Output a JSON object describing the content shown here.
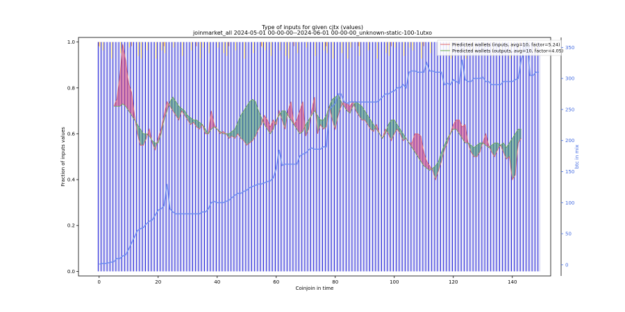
{
  "chart_data": {
    "type": "bar",
    "title": "Type of inputs for given cjtx (values)",
    "subtitle": "joinmarket_all 2024-05-01 00-00-00--2024-06-01 00-00-00_unknown-static-100-1utxo",
    "xlabel": "Coinjoin in time",
    "ylabel": "Fraction of inputs values",
    "ylabel_right": "btc in mix",
    "xlim": [
      -7,
      153
    ],
    "ylim": [
      -0.02,
      1.02
    ],
    "ylim_right": [
      -18,
      366
    ],
    "x_ticks": [
      0,
      20,
      40,
      60,
      80,
      100,
      120,
      140
    ],
    "y_ticks": [
      0.0,
      0.2,
      0.4,
      0.6,
      0.8,
      1.0
    ],
    "y_ticks_right": [
      0,
      50,
      100,
      150,
      200,
      250,
      300,
      350
    ],
    "n_coinjoins": 150,
    "bar_colors": {
      "main": "#1a1ad6",
      "secondary": "#c8c8ee",
      "highlight": "#ffe066",
      "orange": "#f4a460",
      "brown": "#8b4513"
    },
    "legend": {
      "position": "top-right",
      "entries": [
        {
          "label": "Predicted wallets (inputs, avg=10, factor=5.24)",
          "color": "#e06666"
        },
        {
          "label": "Predicted wallets (outputs, avg=10, factor=4.05)",
          "color": "#6aa84f"
        }
      ]
    },
    "series": [
      {
        "name": "Predicted wallets (inputs, avg=10, factor=5.24)",
        "color": "#e06666",
        "fill": "#d6336c",
        "x": [
          5,
          6,
          7,
          8,
          9,
          10,
          11,
          12,
          13,
          14,
          15,
          16,
          17,
          18,
          19,
          20,
          21,
          22,
          23,
          24,
          25,
          26,
          27,
          28,
          29,
          30,
          31,
          32,
          33,
          34,
          35,
          36,
          37,
          38,
          39,
          40,
          41,
          42,
          43,
          44,
          45,
          46,
          47,
          48,
          49,
          50,
          51,
          52,
          53,
          54,
          55,
          56,
          57,
          58,
          59,
          60,
          61,
          62,
          63,
          64,
          65,
          66,
          67,
          68,
          69,
          70,
          71,
          72,
          73,
          74,
          75,
          76,
          77,
          78,
          79,
          80,
          81,
          82,
          83,
          84,
          85,
          86,
          87,
          88,
          89,
          90,
          91,
          92,
          93,
          94,
          95,
          96,
          97,
          98,
          99,
          100,
          101,
          102,
          103,
          104,
          105,
          106,
          107,
          108,
          109,
          110,
          111,
          112,
          113,
          114,
          115,
          116,
          117,
          118,
          119,
          120,
          121,
          122,
          123,
          124,
          125,
          126,
          127,
          128,
          129,
          130,
          131,
          132,
          133,
          134,
          135,
          136,
          137,
          138,
          139,
          140,
          141,
          142,
          143
        ],
        "y": [
          0.72,
          0.75,
          0.85,
          0.99,
          0.92,
          0.82,
          0.78,
          0.68,
          0.6,
          0.55,
          0.55,
          0.58,
          0.62,
          0.56,
          0.53,
          0.58,
          0.62,
          0.68,
          0.74,
          0.72,
          0.7,
          0.68,
          0.66,
          0.7,
          0.68,
          0.66,
          0.64,
          0.65,
          0.63,
          0.62,
          0.64,
          0.6,
          0.6,
          0.7,
          0.64,
          0.62,
          0.6,
          0.61,
          0.6,
          0.58,
          0.59,
          0.58,
          0.6,
          0.58,
          0.57,
          0.55,
          0.56,
          0.57,
          0.59,
          0.62,
          0.64,
          0.68,
          0.66,
          0.63,
          0.66,
          0.64,
          0.7,
          0.66,
          0.62,
          0.7,
          0.74,
          0.64,
          0.66,
          0.7,
          0.74,
          0.59,
          0.62,
          0.7,
          0.76,
          0.6,
          0.64,
          0.62,
          0.63,
          0.72,
          0.66,
          0.62,
          0.68,
          0.72,
          0.74,
          0.73,
          0.72,
          0.74,
          0.7,
          0.68,
          0.66,
          0.66,
          0.64,
          0.62,
          0.61,
          0.64,
          0.6,
          0.58,
          0.62,
          0.6,
          0.57,
          0.6,
          0.62,
          0.6,
          0.57,
          0.58,
          0.56,
          0.56,
          0.6,
          0.6,
          0.59,
          0.52,
          0.48,
          0.46,
          0.44,
          0.4,
          0.44,
          0.48,
          0.53,
          0.56,
          0.6,
          0.64,
          0.66,
          0.66,
          0.63,
          0.64,
          0.56,
          0.52,
          0.5,
          0.5,
          0.52,
          0.56,
          0.6,
          0.55,
          0.52,
          0.5,
          0.53,
          0.55,
          0.52,
          0.49,
          0.5,
          0.4,
          0.42,
          0.56,
          0.58
        ]
      },
      {
        "name": "Predicted wallets (outputs, avg=10, factor=4.05)",
        "color": "#6aa84f",
        "fill": "#2e8b57",
        "x": [
          5,
          6,
          7,
          8,
          9,
          10,
          11,
          12,
          13,
          14,
          15,
          16,
          17,
          18,
          19,
          20,
          21,
          22,
          23,
          24,
          25,
          26,
          27,
          28,
          29,
          30,
          31,
          32,
          33,
          34,
          35,
          36,
          37,
          38,
          39,
          40,
          41,
          42,
          43,
          44,
          45,
          46,
          47,
          48,
          49,
          50,
          51,
          52,
          53,
          54,
          55,
          56,
          57,
          58,
          59,
          60,
          61,
          62,
          63,
          64,
          65,
          66,
          67,
          68,
          69,
          70,
          71,
          72,
          73,
          74,
          75,
          76,
          77,
          78,
          79,
          80,
          81,
          82,
          83,
          84,
          85,
          86,
          87,
          88,
          89,
          90,
          91,
          92,
          93,
          94,
          95,
          96,
          97,
          98,
          99,
          100,
          101,
          102,
          103,
          104,
          105,
          106,
          107,
          108,
          109,
          110,
          111,
          112,
          113,
          114,
          115,
          116,
          117,
          118,
          119,
          120,
          121,
          122,
          123,
          124,
          125,
          126,
          127,
          128,
          129,
          130,
          131,
          132,
          133,
          134,
          135,
          136,
          137,
          138,
          139,
          140,
          141,
          142,
          143
        ],
        "y": [
          0.72,
          0.72,
          0.72,
          0.73,
          0.72,
          0.7,
          0.68,
          0.66,
          0.64,
          0.62,
          0.6,
          0.6,
          0.59,
          0.57,
          0.56,
          0.56,
          0.6,
          0.66,
          0.7,
          0.74,
          0.76,
          0.74,
          0.72,
          0.71,
          0.7,
          0.68,
          0.67,
          0.66,
          0.66,
          0.65,
          0.64,
          0.62,
          0.6,
          0.62,
          0.63,
          0.62,
          0.61,
          0.6,
          0.6,
          0.6,
          0.61,
          0.62,
          0.65,
          0.68,
          0.7,
          0.72,
          0.74,
          0.75,
          0.74,
          0.7,
          0.67,
          0.64,
          0.62,
          0.6,
          0.62,
          0.66,
          0.68,
          0.7,
          0.7,
          0.68,
          0.66,
          0.64,
          0.62,
          0.6,
          0.61,
          0.64,
          0.66,
          0.68,
          0.7,
          0.68,
          0.66,
          0.66,
          0.68,
          0.72,
          0.75,
          0.76,
          0.77,
          0.74,
          0.72,
          0.7,
          0.69,
          0.72,
          0.74,
          0.73,
          0.72,
          0.7,
          0.68,
          0.66,
          0.64,
          0.62,
          0.6,
          0.58,
          0.6,
          0.64,
          0.66,
          0.66,
          0.64,
          0.62,
          0.6,
          0.58,
          0.56,
          0.54,
          0.52,
          0.5,
          0.48,
          0.46,
          0.45,
          0.44,
          0.45,
          0.46,
          0.48,
          0.52,
          0.55,
          0.58,
          0.6,
          0.62,
          0.62,
          0.6,
          0.58,
          0.56,
          0.56,
          0.55,
          0.54,
          0.55,
          0.56,
          0.56,
          0.55,
          0.54,
          0.55,
          0.56,
          0.56,
          0.55,
          0.56,
          0.54,
          0.56,
          0.58,
          0.6,
          0.62,
          0.62
        ]
      },
      {
        "name": "",
        "axis": "right",
        "color": "#6b8cf0",
        "x": [
          0,
          1,
          2,
          3,
          4,
          5,
          6,
          7,
          8,
          9,
          10,
          11,
          12,
          13,
          14,
          15,
          16,
          17,
          18,
          19,
          20,
          21,
          22,
          23,
          24,
          25,
          26,
          27,
          28,
          29,
          30,
          31,
          32,
          33,
          34,
          35,
          36,
          37,
          38,
          39,
          40,
          41,
          42,
          43,
          44,
          45,
          46,
          47,
          48,
          49,
          50,
          51,
          52,
          53,
          54,
          55,
          56,
          57,
          58,
          59,
          60,
          61,
          62,
          63,
          64,
          65,
          66,
          67,
          68,
          69,
          70,
          71,
          72,
          73,
          74,
          75,
          76,
          77,
          78,
          79,
          80,
          81,
          82,
          83,
          84,
          85,
          86,
          87,
          88,
          89,
          90,
          91,
          92,
          93,
          94,
          95,
          96,
          97,
          98,
          99,
          100,
          101,
          102,
          103,
          104,
          105,
          106,
          107,
          108,
          109,
          110,
          111,
          112,
          113,
          114,
          115,
          116,
          117,
          118,
          119,
          120,
          121,
          122,
          123,
          124,
          125,
          126,
          127,
          128,
          129,
          130,
          131,
          132,
          133,
          134,
          135,
          136,
          137,
          138,
          139,
          140,
          141,
          142,
          143,
          144,
          145,
          146,
          147,
          148,
          149
        ],
        "y": [
          1,
          2,
          2,
          3,
          4,
          5,
          10,
          10,
          14,
          16,
          25,
          35,
          45,
          55,
          58,
          60,
          66,
          70,
          72,
          80,
          88,
          90,
          95,
          130,
          90,
          85,
          82,
          82,
          82,
          82,
          82,
          82,
          82,
          82,
          82,
          85,
          85,
          90,
          100,
          102,
          100,
          100,
          100,
          102,
          104,
          108,
          112,
          115,
          115,
          118,
          120,
          124,
          126,
          128,
          130,
          130,
          132,
          134,
          135,
          140,
          155,
          185,
          160,
          162,
          162,
          162,
          162,
          162,
          175,
          178,
          180,
          185,
          188,
          186,
          186,
          186,
          190,
          190,
          250,
          255,
          260,
          275,
          275,
          262,
          260,
          262,
          262,
          262,
          262,
          262,
          262,
          262,
          262,
          262,
          262,
          265,
          270,
          275,
          275,
          278,
          280,
          285,
          285,
          290,
          285,
          310,
          312,
          312,
          310,
          310,
          310,
          325,
          312,
          312,
          310,
          310,
          310,
          290,
          292,
          290,
          298,
          295,
          292,
          330,
          298,
          295,
          295,
          300,
          300,
          300,
          302,
          295,
          295,
          290,
          290,
          290,
          290,
          295,
          295,
          295,
          295,
          298,
          300,
          330,
          345,
          360,
          305,
          305,
          310,
          310
        ]
      }
    ],
    "bar_series_note": ""
  }
}
